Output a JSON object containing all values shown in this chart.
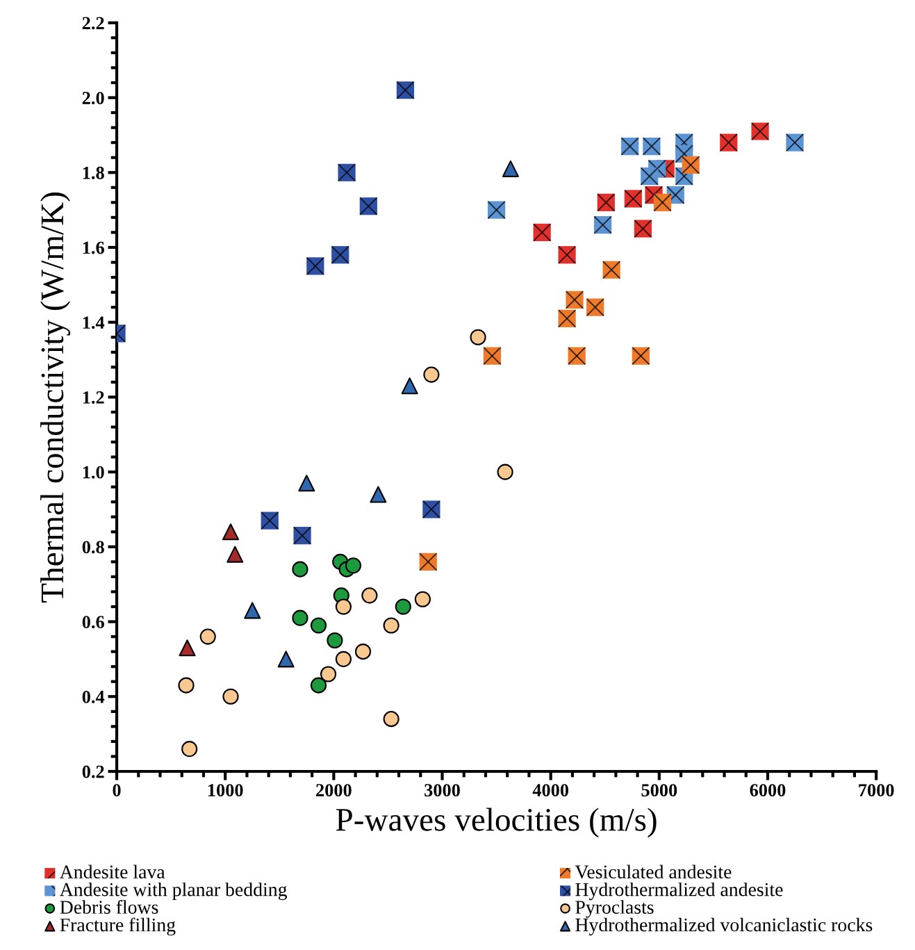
{
  "chart_data": {
    "type": "scatter",
    "xlabel": "P-waves velocities (m/s)",
    "ylabel": "Thermal conductivity (W/m/K)",
    "xlim": [
      0,
      7000
    ],
    "xticks": [
      0,
      1000,
      2000,
      3000,
      4000,
      5000,
      6000,
      7000
    ],
    "ylim": [
      0.2,
      2.2
    ],
    "yticks": [
      {
        "value": 0.2,
        "label": "0.2"
      },
      {
        "value": 0.4,
        "label": "0.4"
      },
      {
        "value": 0.6,
        "label": "0.6"
      },
      {
        "value": 0.8,
        "label": "0.8"
      },
      {
        "value": 1.0,
        "label": "1.0"
      },
      {
        "value": 1.2,
        "label": "1.2"
      },
      {
        "value": 1.4,
        "label": "1.4"
      },
      {
        "value": 1.6,
        "label": "1.6"
      },
      {
        "value": 1.8,
        "label": "1.8"
      },
      {
        "value": 2.0,
        "label": "2.0"
      },
      {
        "value": 2.2,
        "label": "2.2"
      }
    ],
    "grid": false,
    "legend": "bottom",
    "series": [
      {
        "name": "Andesite lava",
        "color": "#e0312c",
        "marker": "square",
        "x": [
          3920,
          4150,
          4510,
          4760,
          4950,
          4850,
          5060,
          5640,
          5930
        ],
        "values": [
          1.64,
          1.58,
          1.72,
          1.73,
          1.74,
          1.65,
          1.81,
          1.88,
          1.91
        ]
      },
      {
        "name": "Andesite with planar bedding",
        "color": "#5b93d3",
        "marker": "square",
        "x": [
          3500,
          4480,
          4730,
          4930,
          5230,
          5230,
          4980,
          4910,
          5230,
          5150,
          6250
        ],
        "values": [
          1.7,
          1.66,
          1.87,
          1.87,
          1.88,
          1.85,
          1.81,
          1.79,
          1.79,
          1.74,
          1.88
        ]
      },
      {
        "name": "Debris flows",
        "color": "#1e9a3e",
        "marker": "circle",
        "x": [
          1690,
          2060,
          2120,
          2180,
          2070,
          1690,
          1860,
          2010,
          1860,
          2640
        ],
        "values": [
          0.74,
          0.76,
          0.74,
          0.75,
          0.67,
          0.61,
          0.59,
          0.55,
          0.43,
          0.64
        ]
      },
      {
        "name": "Fracture filling",
        "color": "#a52a2a",
        "marker": "triangle",
        "x": [
          1050,
          1090,
          650
        ],
        "values": [
          0.84,
          0.78,
          0.53
        ]
      },
      {
        "name": "Vesiculated andesite",
        "color": "#ee7a2c",
        "marker": "square",
        "x": [
          5290,
          5030,
          4560,
          4220,
          4410,
          4150,
          3460,
          4240,
          4830,
          2870
        ],
        "values": [
          1.82,
          1.72,
          1.54,
          1.46,
          1.44,
          1.41,
          1.31,
          1.31,
          1.31,
          0.76
        ]
      },
      {
        "name": "Hydrothermalized andesite",
        "color": "#2f4fa3",
        "marker": "square",
        "x": [
          2660,
          2120,
          2320,
          2060,
          1830,
          0,
          1410,
          1710,
          2900
        ],
        "values": [
          2.02,
          1.8,
          1.71,
          1.58,
          1.55,
          1.37,
          0.87,
          0.83,
          0.9
        ]
      },
      {
        "name": "Pyroclasts",
        "color": "#f9c890",
        "marker": "circle",
        "x": [
          3330,
          2900,
          3580,
          2330,
          2090,
          2820,
          2530,
          840,
          2270,
          2090,
          1950,
          640,
          1050,
          2530,
          670
        ],
        "values": [
          1.36,
          1.26,
          1.0,
          0.67,
          0.64,
          0.66,
          0.59,
          0.56,
          0.52,
          0.5,
          0.46,
          0.43,
          0.4,
          0.34,
          0.26
        ]
      },
      {
        "name": "Hydrothermalized volcaniclastic rocks",
        "color": "#3068b0",
        "marker": "triangle",
        "x": [
          3630,
          2700,
          1750,
          2410,
          1250,
          1560
        ],
        "values": [
          1.81,
          1.23,
          0.97,
          0.94,
          0.63,
          0.5
        ]
      }
    ]
  }
}
